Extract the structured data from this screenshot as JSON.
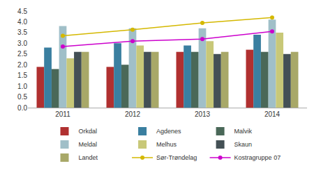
{
  "chart_data": {
    "type": "bar",
    "categories": [
      "2011",
      "2012",
      "2013",
      "2014"
    ],
    "series": [
      {
        "name": "Orkdal",
        "type": "bar",
        "color": "#b03030",
        "values": [
          1.9,
          1.9,
          2.6,
          2.7
        ]
      },
      {
        "name": "Agdenes",
        "type": "bar",
        "color": "#3a7fa0",
        "values": [
          2.8,
          3.0,
          2.9,
          3.4
        ]
      },
      {
        "name": "Malvik",
        "type": "bar",
        "color": "#4a6858",
        "values": [
          1.8,
          2.0,
          2.6,
          2.6
        ]
      },
      {
        "name": "Meldal",
        "type": "bar",
        "color": "#a0bfc8",
        "values": [
          3.8,
          3.7,
          3.7,
          4.1
        ]
      },
      {
        "name": "Melhus",
        "type": "bar",
        "color": "#c8c878",
        "values": [
          2.3,
          2.9,
          3.1,
          3.5
        ]
      },
      {
        "name": "Skaun",
        "type": "bar",
        "color": "#445055",
        "values": [
          2.6,
          2.6,
          2.5,
          2.5
        ]
      },
      {
        "name": "Landet",
        "type": "bar",
        "color": "#a8a868",
        "values": [
          2.6,
          2.6,
          2.6,
          2.6
        ]
      },
      {
        "name": "Sør-Trøndelag",
        "type": "line",
        "color": "#d4b800",
        "marker": "circle",
        "values": [
          3.35,
          3.63,
          3.95,
          4.2
        ]
      },
      {
        "name": "Kostragruppe 07",
        "type": "line",
        "color": "#cc00cc",
        "marker": "circle",
        "values": [
          2.85,
          3.1,
          3.2,
          3.55
        ]
      }
    ],
    "ylim": [
      0,
      4.5
    ],
    "yticks": [
      {
        "value": 0,
        "label": "0.0"
      },
      0.5,
      {
        "value": 1.0,
        "label": "1.0"
      },
      1.5,
      {
        "value": 2.0,
        "label": "2.0"
      },
      2.5,
      {
        "value": 3.0,
        "label": "3.0"
      },
      3.5,
      {
        "value": 4.0,
        "label": "4.0"
      },
      4.5
    ],
    "grid": false,
    "legend": "bottom"
  }
}
